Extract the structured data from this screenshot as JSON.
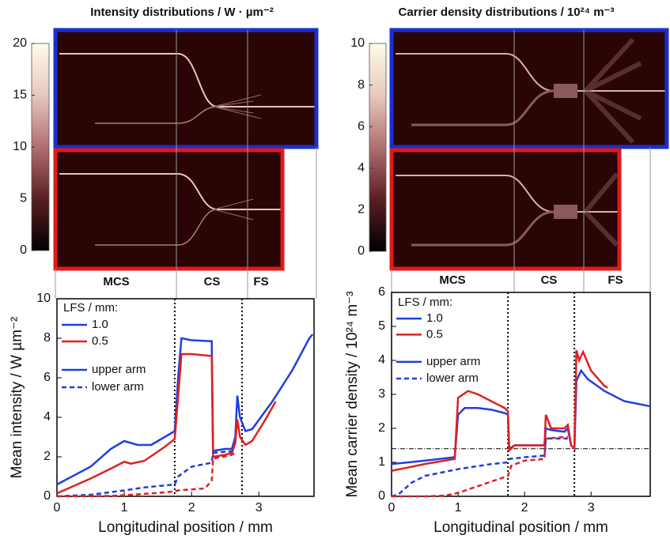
{
  "heatmaps": [
    {
      "title": "Intensity distributions  /  W · µm⁻²",
      "colorbar_lim": [
        0,
        20
      ],
      "colorbar_ticks": [
        0,
        5,
        10,
        15,
        20
      ],
      "sections": [
        "MCS",
        "CS",
        "FS"
      ]
    },
    {
      "title": "Carrier density distributions  /  10²⁴ m⁻³",
      "colorbar_lim": [
        0,
        10
      ],
      "colorbar_ticks": [
        0,
        2,
        4,
        6,
        8,
        10
      ],
      "sections": [
        "MCS",
        "CS",
        "FS"
      ]
    }
  ],
  "chart_data": [
    {
      "type": "line",
      "xlabel": "Longitudinal position  /  mm",
      "ylabel": "Mean intensity  /  W µm⁻²",
      "xlim": [
        0,
        3.82
      ],
      "xticks": [
        0,
        1,
        2,
        3
      ],
      "ylim": [
        0,
        10
      ],
      "yticks": [
        0,
        2,
        4,
        6,
        8,
        10
      ],
      "vlines": [
        1.75,
        2.75
      ],
      "hlines": [],
      "legend": {
        "title": "LFS / mm:",
        "entries": [
          {
            "label": "1.0",
            "color": "#1f3fe0",
            "dash": false
          },
          {
            "label": "0.5",
            "color": "#e02020",
            "dash": false
          },
          {
            "label": "upper arm",
            "color": "#1f3fe0",
            "dash": false
          },
          {
            "label": "lower arm",
            "color": "#1f3fe0",
            "dash": true
          }
        ]
      },
      "series": [
        {
          "color": "#1f3fe0",
          "dash": false,
          "x": [
            0,
            0.5,
            0.8,
            1.0,
            1.2,
            1.4,
            1.6,
            1.75,
            1.8,
            1.85,
            2.0,
            2.3,
            2.32,
            2.5,
            2.6,
            2.65,
            2.68,
            2.72,
            2.8,
            2.9,
            3.2,
            3.5,
            3.75,
            3.8
          ],
          "values": [
            0.6,
            1.5,
            2.4,
            2.8,
            2.6,
            2.6,
            3.0,
            3.3,
            6.0,
            8.0,
            7.9,
            7.85,
            2.3,
            2.4,
            2.4,
            3.0,
            5.1,
            4.0,
            3.3,
            3.4,
            4.8,
            6.4,
            8.0,
            8.2
          ]
        },
        {
          "color": "#e02020",
          "dash": false,
          "x": [
            0,
            0.5,
            0.8,
            1.0,
            1.1,
            1.3,
            1.6,
            1.75,
            1.8,
            1.85,
            2.0,
            2.3,
            2.32,
            2.5,
            2.6,
            2.65,
            2.68,
            2.72,
            2.8,
            2.9,
            3.1,
            3.25
          ],
          "values": [
            0.15,
            0.9,
            1.4,
            1.75,
            1.65,
            1.8,
            2.5,
            2.9,
            5.0,
            7.2,
            7.2,
            7.1,
            2.0,
            2.1,
            2.2,
            2.7,
            3.9,
            3.0,
            2.6,
            2.8,
            3.9,
            4.8
          ]
        },
        {
          "color": "#1f3fe0",
          "dash": true,
          "x": [
            0,
            0.5,
            1.0,
            1.3,
            1.6,
            1.75,
            1.8,
            2.0,
            2.3,
            2.32,
            2.65
          ],
          "values": [
            0,
            0.08,
            0.3,
            0.45,
            0.55,
            0.6,
            1.0,
            1.5,
            1.7,
            2.2,
            2.3
          ]
        },
        {
          "color": "#e02020",
          "dash": true,
          "x": [
            0,
            0.8,
            1.2,
            1.6,
            1.75,
            1.8,
            2.0,
            2.2,
            2.3,
            2.32,
            2.6,
            2.65
          ],
          "values": [
            0,
            0.02,
            0.1,
            0.2,
            0.25,
            0.3,
            0.35,
            0.4,
            0.8,
            1.9,
            2.1,
            2.2
          ]
        }
      ]
    },
    {
      "type": "line",
      "xlabel": "Longitudinal position  /  mm",
      "ylabel": "Mean carrier density  /  10²⁴ m⁻³",
      "xlim": [
        0,
        3.89
      ],
      "xticks": [
        0,
        1,
        2,
        3
      ],
      "ylim": [
        0,
        6
      ],
      "yticks": [
        0,
        1,
        2,
        3,
        4,
        5,
        6
      ],
      "vlines": [
        1.75,
        2.75
      ],
      "hlines": [
        1.4
      ],
      "legend": {
        "title": "LFS / mm:",
        "entries": [
          {
            "label": "1.0",
            "color": "#1f3fe0",
            "dash": false
          },
          {
            "label": "0.5",
            "color": "#e02020",
            "dash": false
          },
          {
            "label": "upper arm",
            "color": "#1f3fe0",
            "dash": false
          },
          {
            "label": "lower arm",
            "color": "#1f3fe0",
            "dash": true
          }
        ]
      },
      "series": [
        {
          "color": "#1f3fe0",
          "dash": false,
          "x": [
            0,
            0.5,
            0.95,
            1.0,
            1.1,
            1.3,
            1.5,
            1.7,
            1.75,
            1.77,
            1.85,
            2.0,
            2.3,
            2.32,
            2.4,
            2.6,
            2.65,
            2.7,
            2.75,
            2.78,
            2.85,
            2.95,
            3.2,
            3.5,
            3.89
          ],
          "values": [
            0.95,
            1.05,
            1.15,
            2.4,
            2.6,
            2.6,
            2.55,
            2.45,
            2.4,
            1.4,
            1.5,
            1.5,
            1.5,
            2.0,
            1.95,
            1.9,
            2.0,
            1.5,
            1.4,
            3.4,
            3.7,
            3.45,
            3.1,
            2.8,
            2.65
          ]
        },
        {
          "color": "#e02020",
          "dash": false,
          "x": [
            0,
            0.5,
            0.95,
            1.0,
            1.15,
            1.3,
            1.5,
            1.7,
            1.75,
            1.77,
            1.85,
            2.3,
            2.32,
            2.4,
            2.6,
            2.65,
            2.7,
            2.75,
            2.78,
            2.82,
            2.88,
            3.0,
            3.2,
            3.25
          ],
          "values": [
            0.75,
            0.95,
            1.1,
            2.9,
            3.1,
            3.0,
            2.8,
            2.6,
            2.5,
            1.35,
            1.5,
            1.5,
            2.4,
            2.0,
            2.0,
            2.1,
            1.5,
            1.4,
            4.3,
            4.0,
            4.25,
            3.7,
            3.25,
            3.2
          ]
        },
        {
          "color": "#1f3fe0",
          "dash": true,
          "x": [
            0,
            0.1,
            0.3,
            0.5,
            1.0,
            1.5,
            1.75,
            1.77,
            2.0,
            2.3,
            2.32,
            2.65
          ],
          "values": [
            0,
            0.05,
            0.4,
            0.6,
            0.8,
            0.95,
            1.0,
            1.1,
            1.15,
            1.2,
            1.7,
            1.7
          ]
        },
        {
          "color": "#e02020",
          "dash": true,
          "x": [
            0,
            0.5,
            0.8,
            1.0,
            1.3,
            1.6,
            1.75,
            1.8,
            2.0,
            2.3,
            2.32,
            2.65
          ],
          "values": [
            0,
            0,
            0.02,
            0.1,
            0.3,
            0.5,
            0.6,
            0.9,
            1.05,
            1.1,
            1.7,
            1.75
          ]
        }
      ]
    }
  ]
}
